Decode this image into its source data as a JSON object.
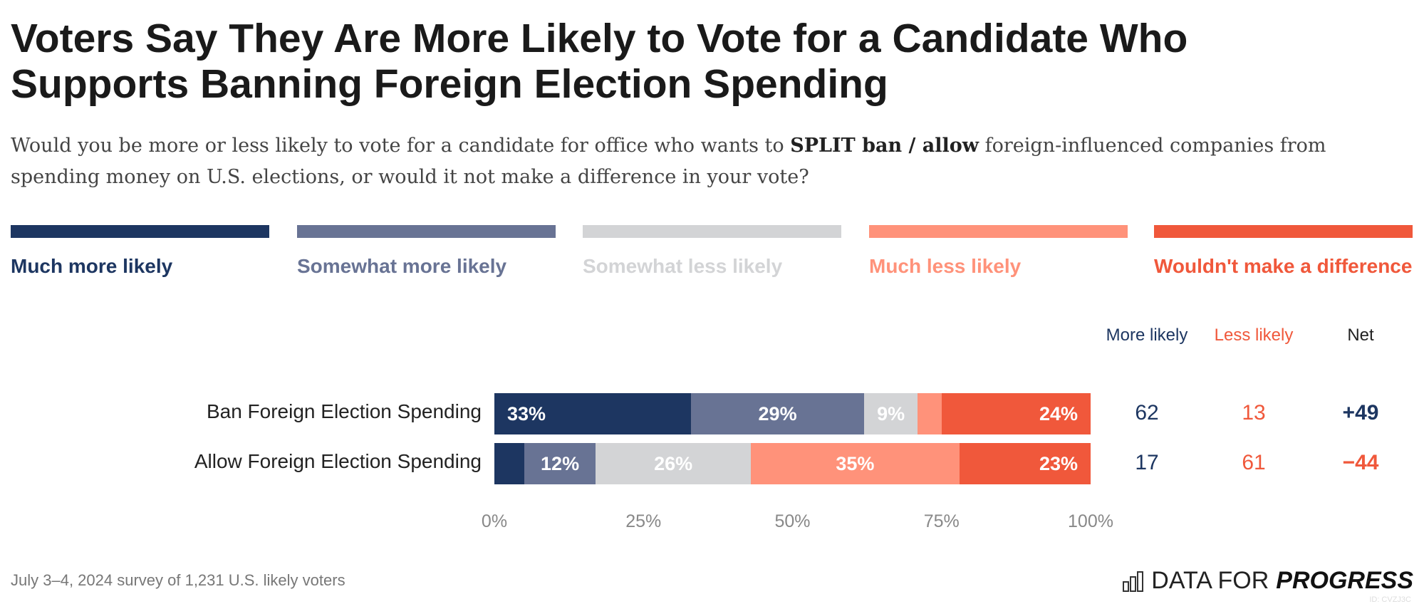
{
  "chart_data": {
    "type": "stacked-bar-horizontal",
    "title": "Voters Say They Are More Likely to Vote for a Candidate Who Supports Banning Foreign Election Spending",
    "subtitle": {
      "pre": "Would you be more or less likely to vote for a candidate for office who wants to ",
      "bold": "SPLIT ban / allow",
      "post": " foreign-influenced companies from spending money on U.S. elections, or would it not make a difference in your vote?"
    },
    "categories": [
      "Ban Foreign Election Spending",
      "Allow Foreign Election Spending"
    ],
    "series": [
      {
        "name": "Much more likely",
        "color": "#1d3661",
        "values": [
          33,
          5
        ],
        "labels": [
          "33%",
          ""
        ]
      },
      {
        "name": "Somewhat more likely",
        "color": "#687394",
        "values": [
          29,
          12
        ],
        "labels": [
          "29%",
          "12%"
        ]
      },
      {
        "name": "Somewhat less likely",
        "color": "#d3d4d6",
        "values": [
          9,
          26
        ],
        "labels": [
          "9%",
          "26%"
        ]
      },
      {
        "name": "Much less likely",
        "color": "#ff927a",
        "values": [
          4,
          35
        ],
        "labels": [
          "",
          "35%"
        ]
      },
      {
        "name": "Wouldn't make a difference",
        "color": "#f0583b",
        "values": [
          24,
          23
        ],
        "labels": [
          "24%",
          "23%"
        ]
      }
    ],
    "xlim": [
      0,
      100
    ],
    "xticks": [
      "0%",
      "25%",
      "50%",
      "75%",
      "100%"
    ],
    "legend": "top",
    "columns": {
      "headers": [
        {
          "text": "More likely",
          "color": "#1d3661"
        },
        {
          "text": "Less likely",
          "color": "#f0583b"
        },
        {
          "text": "Net",
          "color": "#222222"
        }
      ],
      "rows": [
        [
          "62",
          "13",
          "+49"
        ],
        [
          "17",
          "61",
          "−44"
        ]
      ],
      "net_colors": [
        "#1d3661",
        "#f0583b"
      ]
    }
  },
  "footer": "July 3–4, 2024 survey of 1,231 U.S. likely voters",
  "logo": {
    "light": "DATA FOR",
    "bold": "PROGRESS",
    "id": "ID: CVZJ3C"
  }
}
